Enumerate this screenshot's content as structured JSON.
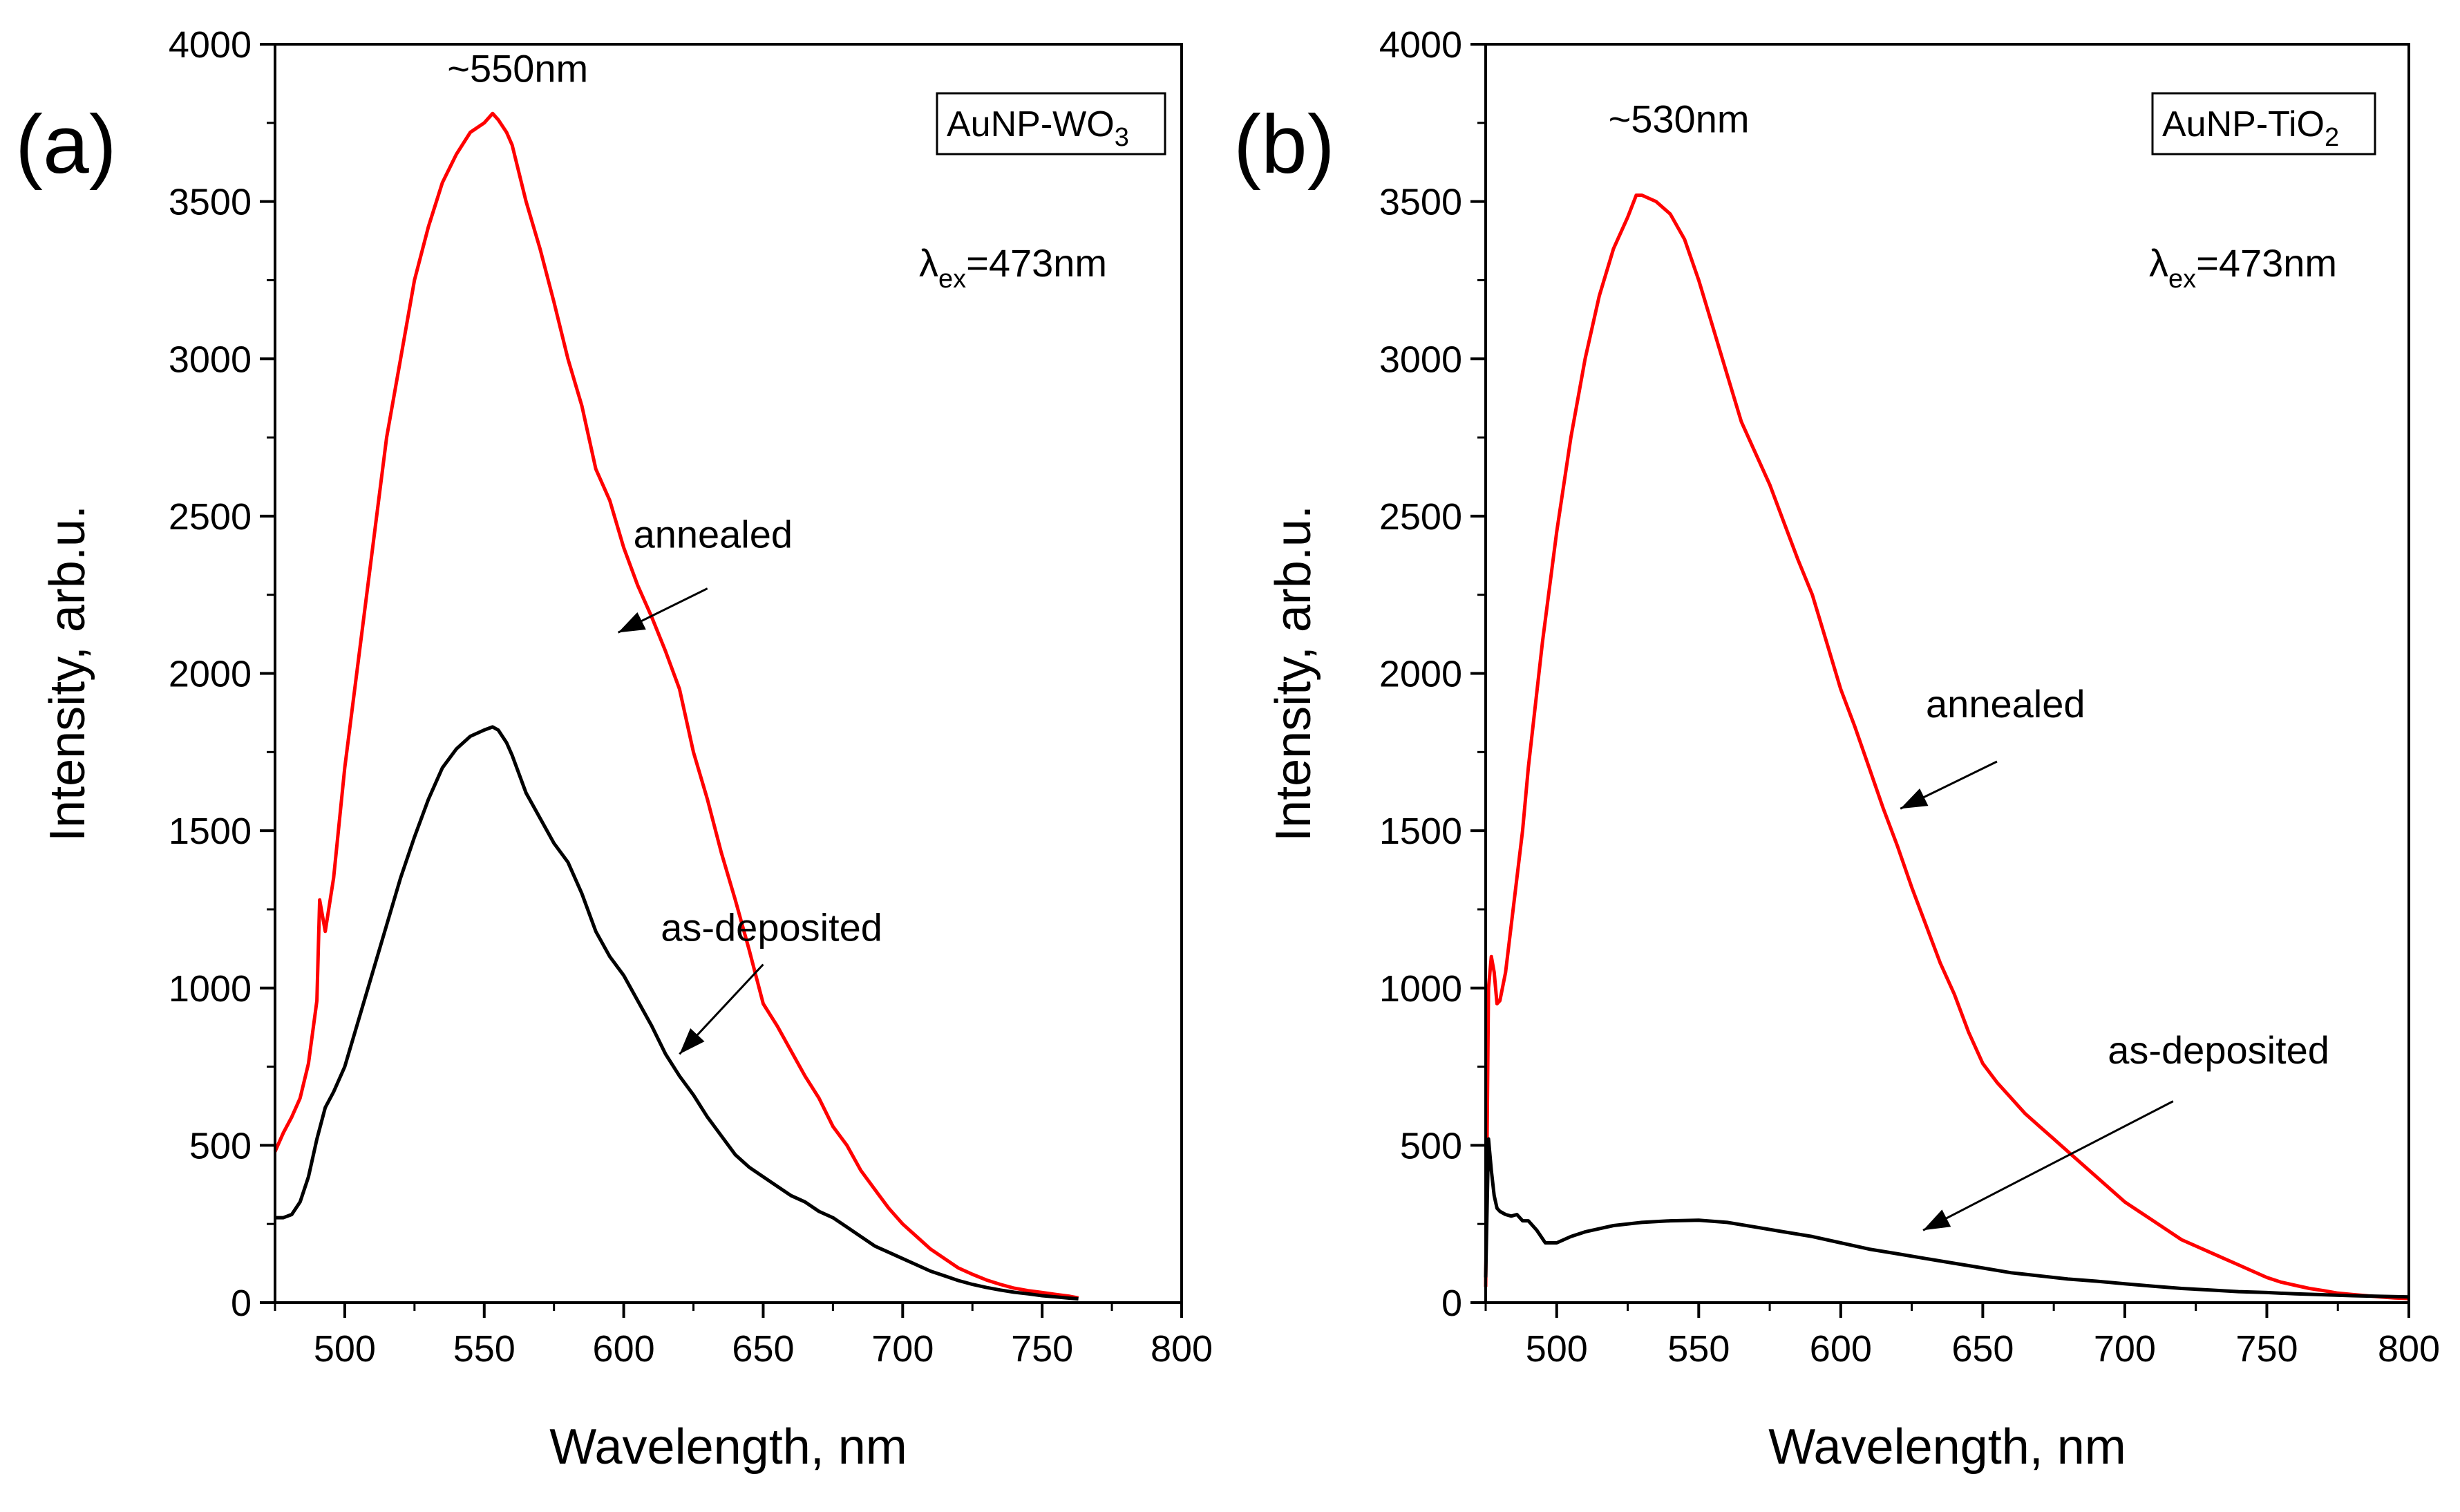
{
  "chart_data": [
    {
      "type": "line",
      "panel_label": "(a)",
      "xlabel": "Wavelength, nm",
      "ylabel": "Intensity, arb.u.",
      "xlim": [
        475,
        800
      ],
      "ylim": [
        0,
        4000
      ],
      "xticks": [
        500,
        550,
        600,
        650,
        700,
        750,
        800
      ],
      "yticks": [
        0,
        500,
        1000,
        1500,
        2000,
        2500,
        3000,
        3500,
        4000
      ],
      "sample": {
        "base": "AuNP-WO",
        "sub": "3"
      },
      "excitation": {
        "lambda": "λ",
        "sub": "ex",
        "value": "=473nm"
      },
      "peak_label": "~550nm",
      "peak_label_pos": [
        562,
        3880
      ],
      "annotations": [
        {
          "text": "annealed",
          "text_pos": [
            632,
            2400
          ],
          "from": [
            630,
            2270
          ],
          "to": [
            598,
            2130
          ]
        },
        {
          "text": "as-deposited",
          "text_pos": [
            653,
            1150
          ],
          "from": [
            650,
            1075
          ],
          "to": [
            620,
            790
          ]
        }
      ],
      "series": [
        {
          "name": "annealed",
          "color": "#ff0000",
          "x": [
            475,
            478,
            481,
            484,
            487,
            490,
            491,
            493,
            496,
            500,
            505,
            510,
            515,
            520,
            525,
            530,
            535,
            540,
            545,
            550,
            553,
            555,
            558,
            560,
            565,
            570,
            575,
            580,
            585,
            590,
            595,
            600,
            605,
            610,
            615,
            620,
            625,
            630,
            635,
            640,
            645,
            650,
            655,
            660,
            665,
            670,
            675,
            680,
            685,
            690,
            695,
            700,
            705,
            710,
            715,
            720,
            725,
            730,
            735,
            740,
            745,
            750,
            755,
            760,
            763
          ],
          "y": [
            480,
            540,
            590,
            650,
            760,
            960,
            1280,
            1180,
            1350,
            1700,
            2050,
            2400,
            2750,
            3000,
            3250,
            3420,
            3560,
            3650,
            3720,
            3750,
            3780,
            3760,
            3720,
            3680,
            3500,
            3350,
            3180,
            3000,
            2850,
            2650,
            2550,
            2400,
            2280,
            2180,
            2070,
            1950,
            1750,
            1600,
            1430,
            1280,
            1120,
            950,
            880,
            800,
            720,
            650,
            560,
            500,
            420,
            360,
            300,
            250,
            210,
            170,
            140,
            110,
            90,
            72,
            58,
            46,
            38,
            32,
            26,
            20,
            15
          ]
        },
        {
          "name": "as-deposited",
          "color": "#000000",
          "x": [
            475,
            478,
            481,
            484,
            487,
            490,
            493,
            496,
            500,
            505,
            510,
            515,
            520,
            525,
            530,
            535,
            540,
            545,
            550,
            553,
            555,
            558,
            560,
            565,
            570,
            575,
            580,
            585,
            590,
            595,
            600,
            605,
            610,
            615,
            620,
            625,
            630,
            635,
            640,
            645,
            650,
            655,
            660,
            665,
            670,
            675,
            680,
            685,
            690,
            695,
            700,
            705,
            710,
            715,
            720,
            725,
            730,
            735,
            740,
            745,
            750,
            755,
            760,
            763
          ],
          "y": [
            270,
            270,
            280,
            320,
            400,
            520,
            620,
            670,
            750,
            900,
            1050,
            1200,
            1350,
            1480,
            1600,
            1700,
            1760,
            1800,
            1820,
            1830,
            1820,
            1780,
            1740,
            1620,
            1540,
            1460,
            1400,
            1300,
            1180,
            1100,
            1040,
            960,
            880,
            790,
            720,
            660,
            590,
            530,
            470,
            430,
            400,
            370,
            340,
            320,
            290,
            270,
            240,
            210,
            180,
            160,
            140,
            120,
            100,
            85,
            70,
            58,
            48,
            40,
            33,
            28,
            22,
            18,
            14,
            12
          ]
        }
      ]
    },
    {
      "type": "line",
      "panel_label": "(b)",
      "xlabel": "Wavelength, nm",
      "ylabel": "Intensity, arb.u.",
      "xlim": [
        475,
        800
      ],
      "ylim": [
        0,
        4000
      ],
      "xticks": [
        500,
        550,
        600,
        650,
        700,
        750,
        800
      ],
      "yticks": [
        0,
        500,
        1000,
        1500,
        2000,
        2500,
        3000,
        3500,
        4000
      ],
      "sample": {
        "base": "AuNP-TiO",
        "sub": "2"
      },
      "excitation": {
        "lambda": "λ",
        "sub": "ex",
        "value": "=473nm"
      },
      "peak_label": "~530nm",
      "peak_label_pos": [
        543,
        3720
      ],
      "annotations": [
        {
          "text": "annealed",
          "text_pos": [
            658,
            1860
          ],
          "from": [
            655,
            1720
          ],
          "to": [
            621,
            1570
          ]
        },
        {
          "text": "as-deposited",
          "text_pos": [
            733,
            760
          ],
          "from": [
            717,
            640
          ],
          "to": [
            629,
            230
          ]
        }
      ],
      "series": [
        {
          "name": "annealed",
          "color": "#ff0000",
          "x": [
            475,
            476,
            477,
            478,
            479,
            480,
            482,
            484,
            486,
            488,
            490,
            495,
            500,
            505,
            510,
            515,
            520,
            525,
            528,
            530,
            535,
            540,
            545,
            550,
            555,
            560,
            565,
            570,
            575,
            580,
            585,
            590,
            595,
            600,
            605,
            610,
            615,
            620,
            625,
            630,
            635,
            640,
            645,
            650,
            655,
            660,
            665,
            670,
            675,
            680,
            685,
            690,
            695,
            700,
            705,
            710,
            715,
            720,
            725,
            730,
            735,
            740,
            745,
            750,
            755,
            760,
            765,
            770,
            775,
            780,
            785,
            790,
            795,
            800
          ],
          "y": [
            50,
            1000,
            1100,
            1050,
            950,
            960,
            1050,
            1200,
            1350,
            1500,
            1700,
            2100,
            2450,
            2750,
            3000,
            3200,
            3350,
            3450,
            3520,
            3520,
            3500,
            3460,
            3380,
            3250,
            3100,
            2950,
            2800,
            2700,
            2600,
            2480,
            2360,
            2250,
            2100,
            1950,
            1830,
            1700,
            1570,
            1450,
            1320,
            1200,
            1080,
            980,
            860,
            760,
            700,
            650,
            600,
            560,
            520,
            480,
            440,
            400,
            360,
            320,
            290,
            260,
            230,
            200,
            180,
            160,
            140,
            120,
            100,
            80,
            65,
            55,
            45,
            38,
            30,
            26,
            22,
            18,
            15,
            13
          ]
        },
        {
          "name": "as-deposited",
          "color": "#000000",
          "x": [
            475,
            476,
            477,
            478,
            479,
            480,
            482,
            484,
            486,
            488,
            490,
            493,
            496,
            500,
            505,
            510,
            520,
            530,
            540,
            550,
            560,
            570,
            580,
            590,
            600,
            610,
            620,
            630,
            640,
            650,
            660,
            670,
            680,
            690,
            700,
            710,
            720,
            730,
            740,
            750,
            760,
            770,
            780,
            790,
            800
          ],
          "y": [
            80,
            520,
            420,
            340,
            300,
            290,
            280,
            275,
            280,
            260,
            260,
            230,
            190,
            190,
            210,
            225,
            245,
            255,
            260,
            262,
            255,
            240,
            225,
            210,
            190,
            170,
            155,
            140,
            125,
            110,
            95,
            85,
            75,
            68,
            60,
            52,
            45,
            40,
            35,
            32,
            28,
            25,
            22,
            20,
            18
          ]
        }
      ]
    }
  ]
}
